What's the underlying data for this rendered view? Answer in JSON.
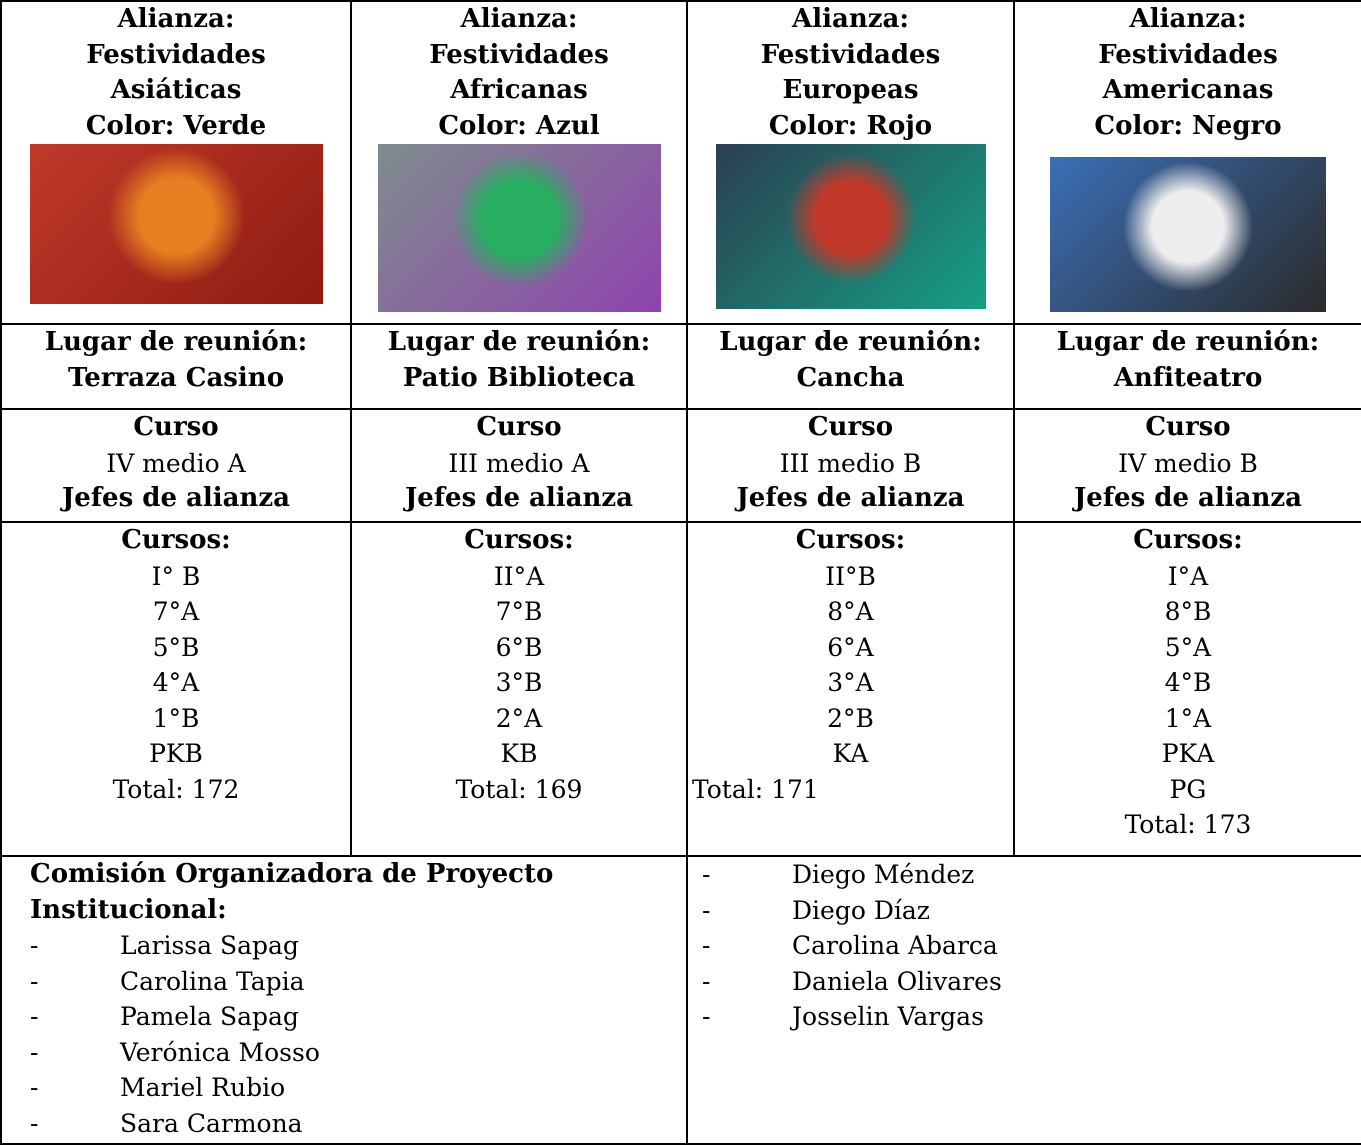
{
  "alliances": [
    {
      "heading": [
        "Alianza:",
        "Festividades",
        "Asiáticas",
        "Color: Verde"
      ],
      "meeting": [
        "Lugar de reunión:",
        "Terraza Casino"
      ],
      "course_label": "Curso",
      "course": "IV medio A",
      "leaders_label": "Jefes de alianza",
      "courses_label": "Cursos:",
      "courses": [
        "I° B",
        "7°A",
        "5°B",
        "4°A",
        "1°B",
        "PKB"
      ],
      "total": "Total: 172"
    },
    {
      "heading": [
        "Alianza:",
        "Festividades",
        "Africanas",
        "Color: Azul"
      ],
      "meeting": [
        "Lugar de reunión:",
        "Patio Biblioteca"
      ],
      "course_label": "Curso",
      "course": "III medio A",
      "leaders_label": "Jefes de alianza",
      "courses_label": "Cursos:",
      "courses": [
        "II°A",
        "7°B",
        "6°B",
        "3°B",
        "2°A",
        "KB"
      ],
      "total": "Total: 169"
    },
    {
      "heading": [
        "Alianza:",
        "Festividades",
        "Europeas",
        "Color: Rojo"
      ],
      "meeting": [
        "Lugar de reunión:",
        "Cancha"
      ],
      "course_label": "Curso",
      "course": "III medio B",
      "leaders_label": "Jefes de alianza",
      "courses_label": "Cursos:",
      "courses": [
        "II°B",
        "8°A",
        "6°A",
        "3°A",
        "2°B",
        "KA"
      ],
      "total": "Total: 171"
    },
    {
      "heading": [
        "Alianza:",
        "Festividades",
        "Americanas",
        "Color: Negro"
      ],
      "meeting": [
        "Lugar de reunión:",
        "Anfiteatro"
      ],
      "course_label": "Curso",
      "course": "IV medio B",
      "leaders_label": "Jefes de alianza",
      "courses_label": "Cursos:",
      "courses": [
        "I°A",
        "8°B",
        "5°A",
        "4°B",
        "1°A",
        "PKA",
        "PG"
      ],
      "total": "Total: 173"
    }
  ],
  "commission": {
    "title": [
      "Comisión Organizadora de Proyecto",
      "Institucional:"
    ],
    "marker": "-",
    "members_left": [
      "Larissa Sapag",
      "Carolina Tapia",
      "Pamela Sapag",
      "Verónica Mosso",
      "Mariel Rubio",
      "Sara Carmona"
    ],
    "members_right": [
      "Diego Méndez",
      "Diego Díaz",
      "Carolina Abarca",
      "Daniela Olivares",
      "Josselin Vargas"
    ]
  }
}
